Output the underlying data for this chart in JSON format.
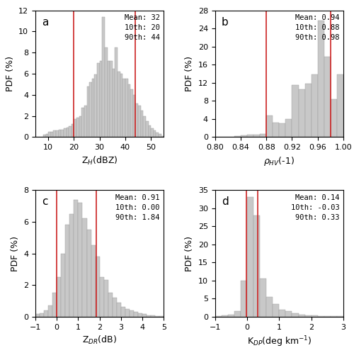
{
  "panels": [
    {
      "label": "a",
      "xlabel": "Z$_{H}$(dBZ)",
      "ylabel": "PDF (%)",
      "xlim": [
        5,
        55
      ],
      "ylim": [
        0,
        12
      ],
      "yticks": [
        0,
        2,
        4,
        6,
        8,
        10,
        12
      ],
      "xticks": [
        10,
        20,
        30,
        40,
        50
      ],
      "q10": 20,
      "q90": 44,
      "text": "Mean: 32\n10th: 20\n90th: 44",
      "bin_edges": [
        5,
        6,
        7,
        8,
        9,
        10,
        11,
        12,
        13,
        14,
        15,
        16,
        17,
        18,
        19,
        20,
        21,
        22,
        23,
        24,
        25,
        26,
        27,
        28,
        29,
        30,
        31,
        32,
        33,
        34,
        35,
        36,
        37,
        38,
        39,
        40,
        41,
        42,
        43,
        44,
        45,
        46,
        47,
        48,
        49,
        50,
        51,
        52,
        53,
        54,
        55
      ],
      "bin_heights": [
        0.0,
        0.0,
        0.0,
        0.2,
        0.3,
        0.5,
        0.5,
        0.6,
        0.6,
        0.7,
        0.7,
        0.8,
        0.9,
        1.0,
        1.2,
        1.7,
        1.8,
        2.0,
        2.8,
        3.0,
        4.8,
        5.2,
        5.5,
        5.9,
        7.0,
        7.2,
        11.4,
        8.5,
        7.2,
        7.2,
        6.5,
        8.5,
        6.2,
        6.0,
        5.5,
        5.5,
        5.0,
        4.5,
        4.0,
        3.2,
        3.0,
        2.5,
        2.0,
        1.5,
        1.1,
        0.8,
        0.6,
        0.4,
        0.3,
        0.1
      ]
    },
    {
      "label": "b",
      "xlabel": "$\\rho_{HV}$(-1)",
      "ylabel": "PDF (%)",
      "xlim": [
        0.8,
        1.0
      ],
      "ylim": [
        0,
        28
      ],
      "yticks": [
        0,
        4,
        8,
        12,
        16,
        20,
        24,
        28
      ],
      "xticks": [
        0.8,
        0.84,
        0.88,
        0.92,
        0.96,
        1.0
      ],
      "q10": 0.88,
      "q90": 0.98,
      "text": "Mean: 0.94\n10th: 0.88\n90th: 0.98",
      "bin_edges": [
        0.8,
        0.81,
        0.82,
        0.83,
        0.84,
        0.85,
        0.86,
        0.87,
        0.88,
        0.89,
        0.9,
        0.91,
        0.92,
        0.93,
        0.94,
        0.95,
        0.96,
        0.97,
        0.98,
        0.99,
        1.0
      ],
      "bin_heights": [
        0.1,
        0.1,
        0.1,
        0.2,
        0.3,
        0.5,
        0.5,
        0.7,
        4.8,
        3.2,
        3.0,
        4.0,
        11.5,
        10.5,
        11.8,
        13.8,
        25.8,
        17.8,
        8.3,
        13.8
      ]
    },
    {
      "label": "c",
      "xlabel": "Z$_{DR}$(dB)",
      "ylabel": "PDF (%)",
      "xlim": [
        -1.0,
        5.0
      ],
      "ylim": [
        0,
        8.0
      ],
      "yticks": [
        0.0,
        2.0,
        4.0,
        6.0,
        8.0
      ],
      "xticks": [
        -1,
        0,
        1,
        2,
        3,
        4,
        5
      ],
      "q10": 0.0,
      "q90": 1.84,
      "text": "Mean: 0.91\n10th: 0.00\n90th: 1.84",
      "bin_edges": [
        -1.0,
        -0.8,
        -0.6,
        -0.4,
        -0.2,
        0.0,
        0.2,
        0.4,
        0.6,
        0.8,
        1.0,
        1.2,
        1.4,
        1.6,
        1.8,
        2.0,
        2.2,
        2.4,
        2.6,
        2.8,
        3.0,
        3.2,
        3.4,
        3.6,
        3.8,
        4.0,
        4.2,
        4.4,
        4.6,
        4.8,
        5.0
      ],
      "bin_heights": [
        0.15,
        0.2,
        0.4,
        0.7,
        1.5,
        2.5,
        4.0,
        5.8,
        6.5,
        7.4,
        7.2,
        6.2,
        5.5,
        4.5,
        3.8,
        2.5,
        2.3,
        1.5,
        1.2,
        0.9,
        0.6,
        0.5,
        0.4,
        0.3,
        0.2,
        0.15,
        0.1,
        0.08,
        0.05,
        0.03
      ]
    },
    {
      "label": "d",
      "xlabel": "K$_{DP}$(deg km$^{-1}$)",
      "ylabel": "PDF (%)",
      "xlim": [
        -1.0,
        3.0
      ],
      "ylim": [
        0,
        35
      ],
      "yticks": [
        0,
        5,
        10,
        15,
        20,
        25,
        30,
        35
      ],
      "xticks": [
        -1,
        0,
        1,
        2,
        3
      ],
      "q10": -0.03,
      "q90": 0.33,
      "text": "Mean: 0.14\n10th: -0.03\n90th: 0.33",
      "bin_edges": [
        -1.0,
        -0.8,
        -0.6,
        -0.4,
        -0.2,
        0.0,
        0.2,
        0.4,
        0.6,
        0.8,
        1.0,
        1.2,
        1.4,
        1.6,
        1.8,
        2.0,
        2.2,
        2.4,
        2.6,
        2.8,
        3.0
      ],
      "bin_heights": [
        0.2,
        0.3,
        0.5,
        1.5,
        10.0,
        33.0,
        28.0,
        10.5,
        5.5,
        3.5,
        2.0,
        1.5,
        0.9,
        0.6,
        0.4,
        0.3,
        0.2,
        0.15,
        0.1,
        0.08
      ]
    }
  ],
  "bar_color": "#c8c8c8",
  "bar_edge_color": "#999999",
  "line_color": "#cc2222",
  "text_fontsize": 7.5,
  "label_fontsize": 9,
  "tick_fontsize": 8
}
